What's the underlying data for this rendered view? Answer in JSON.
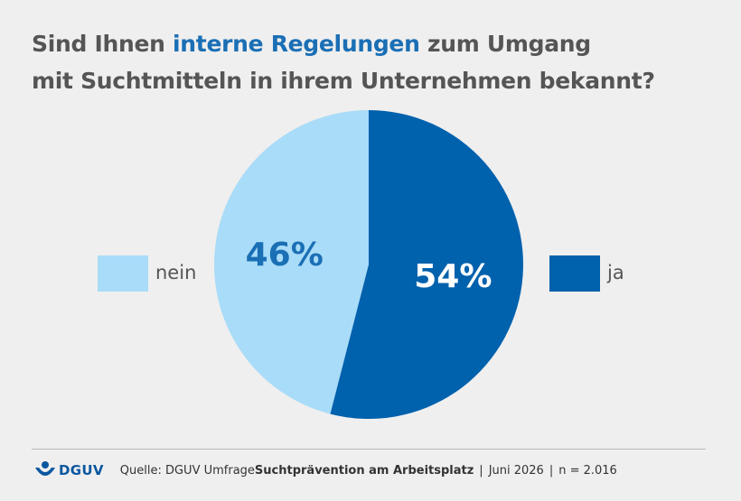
{
  "title": {
    "line1_prefix": "Sind Ihnen ",
    "line1_highlight": "interne Regelungen",
    "line1_suffix": " zum Umgang",
    "line2": "mit Suchtmitteln in ihrem Unternehmen bekannt?"
  },
  "colors": {
    "ja": "#0061ad",
    "nein": "#a9dcf8",
    "ja_label": "#ffffff",
    "nein_label": "#1a6fb5"
  },
  "chart_data": {
    "type": "pie",
    "title": "Sind Ihnen interne Regelungen zum Umgang mit Suchtmitteln in ihrem Unternehmen bekannt?",
    "categories": [
      "nein",
      "ja"
    ],
    "values": [
      46,
      54
    ],
    "data_labels": [
      "46%",
      "54%"
    ],
    "legend": [
      "nein",
      "ja"
    ]
  },
  "footer": {
    "logo_text": "DGUV",
    "source_prefix": "Quelle: DGUV Umfrage ",
    "source_bold": "Suchtprävention am Arbeitsplatz",
    "separator": "|",
    "date": "Juni 2026",
    "sample": "n = 2.016"
  }
}
